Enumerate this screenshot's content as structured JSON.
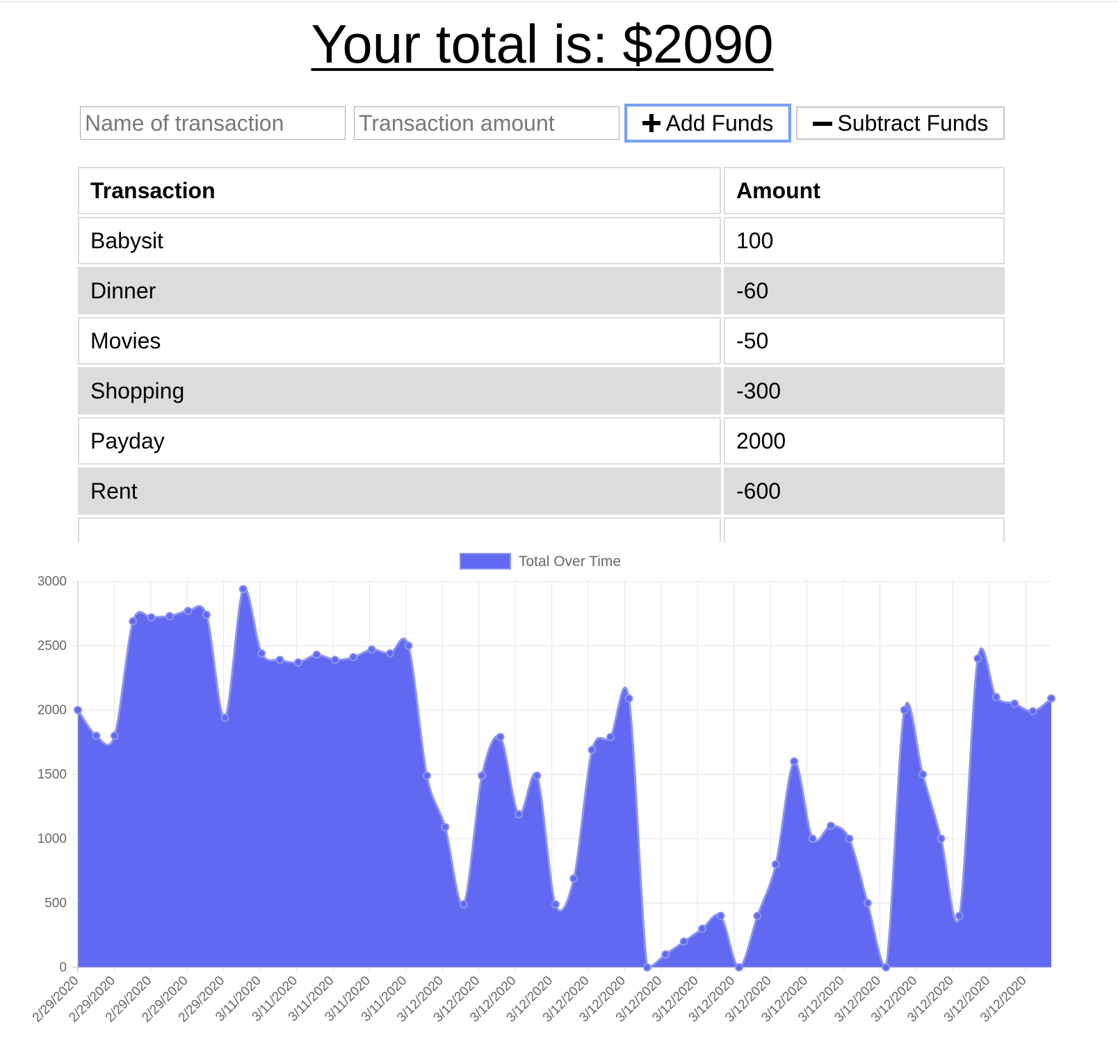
{
  "header": {
    "title": "Your total is: $2090"
  },
  "form": {
    "name_placeholder": "Name of transaction",
    "amount_placeholder": "Transaction amount",
    "add_label": "Add Funds",
    "subtract_label": "Subtract Funds",
    "add_icon": "plus-icon",
    "subtract_icon": "minus-icon"
  },
  "table": {
    "headers": [
      "Transaction",
      "Amount"
    ],
    "rows": [
      {
        "name": "Babysit",
        "amount": "100"
      },
      {
        "name": "Dinner",
        "amount": "-60"
      },
      {
        "name": "Movies",
        "amount": "-50"
      },
      {
        "name": "Shopping",
        "amount": "-300"
      },
      {
        "name": "Payday",
        "amount": "2000"
      },
      {
        "name": "Rent",
        "amount": "-600"
      }
    ]
  },
  "chart_data": {
    "type": "area",
    "legend": "Total Over Time",
    "legend_position": "top",
    "fill_color": "#6169f3",
    "line_color": "#8e95f0",
    "grid": true,
    "ylim": [
      0,
      3000
    ],
    "yticks": [
      0,
      500,
      1000,
      1500,
      2000,
      2500,
      3000
    ],
    "x_tick_labels": [
      "2/29/2020",
      "2/29/2020",
      "2/29/2020",
      "2/29/2020",
      "2/29/2020",
      "3/11/2020",
      "3/11/2020",
      "3/11/2020",
      "3/11/2020",
      "3/11/2020",
      "3/12/2020",
      "3/12/2020",
      "3/12/2020",
      "3/12/2020",
      "3/12/2020",
      "3/12/2020",
      "3/12/2020",
      "3/12/2020",
      "3/12/2020",
      "3/12/2020",
      "3/12/2020",
      "3/12/2020",
      "3/12/2020",
      "3/12/2020",
      "3/12/2020",
      "3/12/2020",
      "3/12/2020"
    ],
    "values": [
      2000,
      1800,
      1800,
      2690,
      2720,
      2730,
      2770,
      2740,
      1940,
      2940,
      2440,
      2390,
      2370,
      2430,
      2390,
      2410,
      2470,
      2440,
      2500,
      1490,
      1090,
      490,
      1490,
      1790,
      1190,
      1490,
      490,
      690,
      1690,
      1790,
      2090,
      0,
      100,
      200,
      300,
      400,
      0,
      400,
      800,
      1600,
      1000,
      1100,
      1000,
      500,
      0,
      2000,
      1500,
      1000,
      400,
      2400,
      2100,
      2050,
      1990,
      2090
    ]
  }
}
